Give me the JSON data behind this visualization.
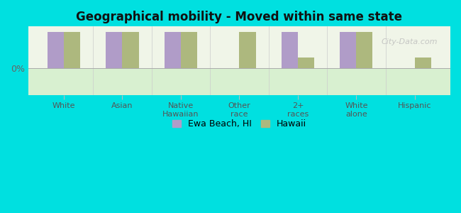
{
  "title": "Geographical mobility - Moved within same state",
  "categories": [
    "White",
    "Asian",
    "Native\nHawaiian",
    "Other\nrace",
    "2+\nraces",
    "White\nalone",
    "Hispanic"
  ],
  "ewa_beach_values": [
    10.0,
    10.0,
    10.0,
    0.0,
    10.0,
    10.0,
    0.0
  ],
  "hawaii_values": [
    10.0,
    10.0,
    10.0,
    10.0,
    3.0,
    10.0,
    3.0
  ],
  "ewa_beach_color": "#b09cc8",
  "hawaii_color": "#adb87e",
  "background_color": "#00e0e0",
  "plot_bg_color": "#f0f5e8",
  "below_zero_color": "#d8f0d0",
  "ylabel": "0%",
  "bar_width": 0.28,
  "ylim_min": -7.5,
  "ylim_max": 11.5,
  "legend_ewa": "Ewa Beach, HI",
  "legend_hawaii": "Hawaii",
  "watermark": "City-Data.com"
}
